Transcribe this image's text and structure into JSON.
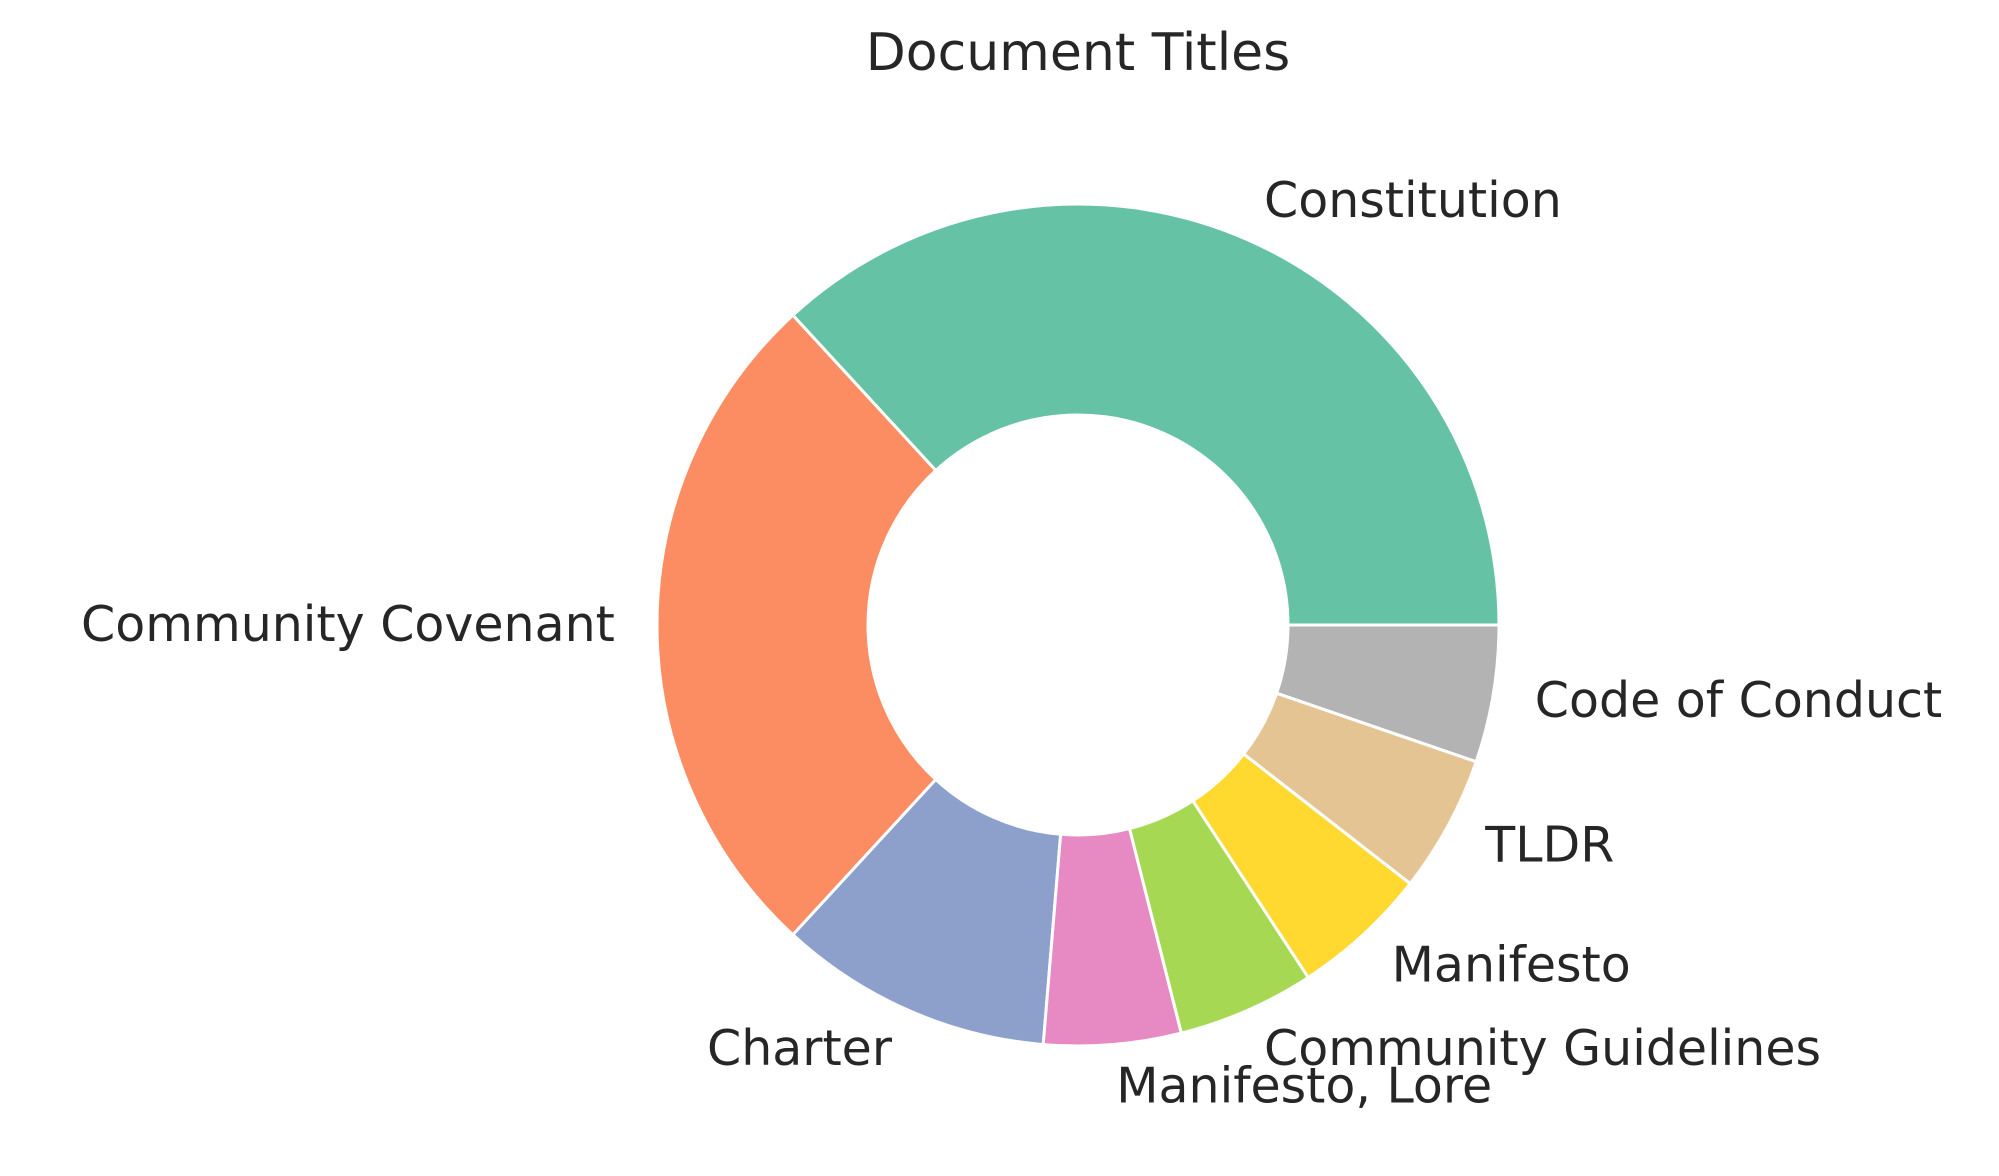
{
  "chart_data": {
    "type": "pie",
    "donut": true,
    "title": "Document Titles",
    "start_angle_deg": 0,
    "direction": "counterclockwise",
    "slices": [
      {
        "label": "Constitution",
        "value": 7,
        "color": "#66c2a5"
      },
      {
        "label": "Community Covenant",
        "value": 5,
        "color": "#fc8d62"
      },
      {
        "label": "Charter",
        "value": 2,
        "color": "#8da0cb"
      },
      {
        "label": "Manifesto, Lore",
        "value": 1,
        "color": "#e78ac3"
      },
      {
        "label": "Community Guidelines",
        "value": 1,
        "color": "#a6d854"
      },
      {
        "label": "Manifesto",
        "value": 1,
        "color": "#ffd92f"
      },
      {
        "label": "TLDR",
        "value": 1,
        "color": "#e5c494"
      },
      {
        "label": "Code of Conduct",
        "value": 1,
        "color": "#b3b3b3"
      }
    ]
  }
}
